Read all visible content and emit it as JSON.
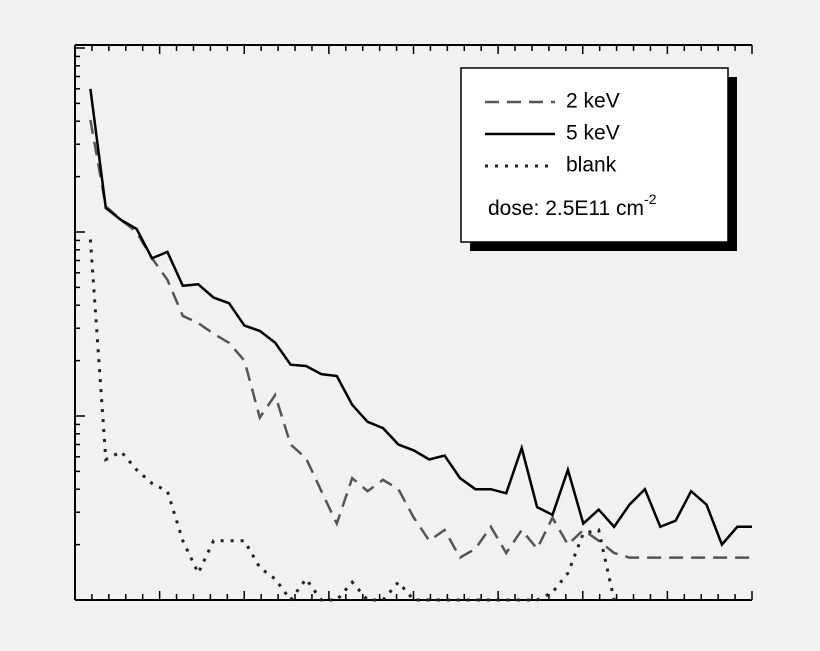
{
  "chart_data": {
    "type": "line",
    "yscale": "log",
    "xlim": [
      0,
      40
    ],
    "ylim": [
      1,
      1000
    ],
    "xticks": [
      0,
      1,
      2,
      3,
      4,
      5,
      6,
      7,
      8,
      9,
      10,
      11,
      12,
      13,
      14,
      15,
      16,
      17,
      18,
      19,
      20,
      21,
      22,
      23,
      24,
      25,
      26,
      27,
      28,
      29,
      30,
      31,
      32,
      33,
      34,
      35,
      36,
      37,
      38,
      39,
      40
    ],
    "yticks": [
      1,
      2,
      3,
      4,
      5,
      6,
      7,
      8,
      9,
      10,
      20,
      30,
      40,
      50,
      60,
      70,
      80,
      90,
      100,
      200,
      300,
      400,
      500,
      600,
      700,
      800,
      900,
      1000
    ],
    "x": [
      0.91,
      1.82,
      2.73,
      3.64,
      4.55,
      5.46,
      6.37,
      7.28,
      8.19,
      9.1,
      10.01,
      10.92,
      11.83,
      12.74,
      13.65,
      14.56,
      15.47,
      16.38,
      17.29,
      18.2,
      19.11,
      20.02,
      20.93,
      21.84,
      22.75,
      23.66,
      24.57,
      25.48,
      26.39,
      27.3,
      28.21,
      29.12,
      30.03,
      30.94,
      31.85,
      32.76,
      33.67,
      34.58,
      35.49,
      36.4,
      37.31,
      38.22,
      39.13,
      40
    ],
    "series": [
      {
        "name": "2 keV",
        "color": "#555555",
        "style": "dashed",
        "values": [
          406,
          138,
          116,
          100,
          72,
          55,
          35,
          32,
          28,
          25,
          20,
          9.8,
          13,
          7.0,
          5.9,
          3.9,
          2.6,
          4.6,
          3.9,
          4.5,
          4.0,
          2.8,
          2.1,
          2.4,
          1.7,
          1.9,
          2.5,
          1.8,
          2.4,
          1.9,
          2.8,
          2.0,
          2.4,
          2.1,
          1.8,
          1.7,
          1.7,
          1.7,
          1.7,
          1.7,
          1.7,
          1.7,
          1.7,
          1.7
        ]
      },
      {
        "name": "5 keV",
        "color": "#000000",
        "style": "solid",
        "values": [
          600,
          135,
          116,
          104,
          72,
          78,
          51,
          52,
          44,
          41,
          31,
          29,
          25,
          19,
          18.7,
          16.9,
          16.5,
          11.5,
          9.3,
          8.6,
          7.0,
          6.5,
          5.8,
          6.1,
          4.6,
          4.0,
          4.0,
          3.8,
          6.7,
          3.2,
          2.9,
          5.1,
          2.6,
          3.1,
          2.5,
          3.3,
          4.0,
          2.5,
          2.7,
          3.9,
          3.3,
          2.0,
          2.5,
          2.5
        ]
      },
      {
        "name": "blank",
        "color": "#222222",
        "style": "dotted",
        "values": [
          91,
          5.8,
          6.4,
          5.1,
          4.3,
          3.9,
          2.1,
          1.4,
          2.1,
          2.1,
          2.1,
          1.5,
          1.3,
          1.0,
          1.3,
          1.0,
          1.0,
          1.25,
          1.0,
          1.0,
          1.25,
          1.0,
          1.0,
          1.0,
          1.0,
          1.0,
          1.0,
          1.0,
          1.0,
          1.0,
          1.1,
          1.4,
          2.3,
          2.4,
          1.0,
          null,
          null,
          null,
          null,
          null,
          null,
          null,
          null,
          null
        ]
      }
    ],
    "annotation": {
      "text": "dose: 2.5E11 cm",
      "superscript": "-2"
    }
  }
}
